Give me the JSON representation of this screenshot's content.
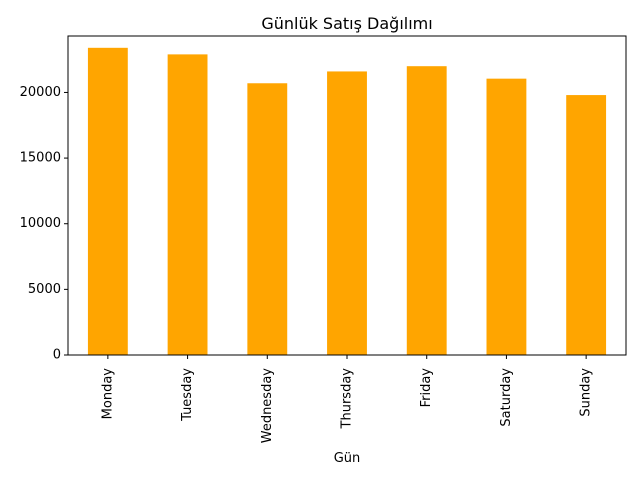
{
  "chart_data": {
    "type": "bar",
    "title": "Günlük Satış Dağılımı",
    "xlabel": "Gün",
    "ylabel": "",
    "categories": [
      "Monday",
      "Tuesday",
      "Wednesday",
      "Thursday",
      "Friday",
      "Saturday",
      "Sunday"
    ],
    "values": [
      23400,
      22900,
      20700,
      21600,
      22000,
      21050,
      19800
    ],
    "ylim": [
      0,
      24300
    ],
    "yticks": [
      0,
      5000,
      10000,
      15000,
      20000
    ],
    "ytick_labels": [
      "0",
      "5000",
      "10000",
      "15000",
      "20000"
    ],
    "grid": false,
    "legend": "none",
    "bar_color": "#FFA500"
  }
}
